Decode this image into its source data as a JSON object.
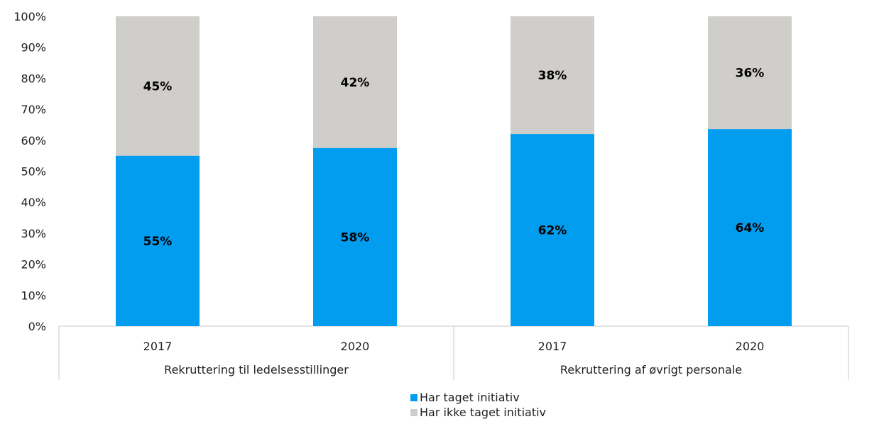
{
  "chart_data": {
    "type": "bar",
    "stacked": true,
    "y_axis": {
      "min": 0,
      "max": 100,
      "tick_labels": [
        "0%",
        "10%",
        "20%",
        "30%",
        "40%",
        "50%",
        "60%",
        "70%",
        "80%",
        "90%",
        "100%"
      ]
    },
    "groups": [
      "Rekruttering til ledelsesstillinger",
      "Rekruttering af øvrigt personale"
    ],
    "categories": [
      "2017",
      "2020",
      "2017",
      "2020"
    ],
    "series": [
      {
        "name": "Har taget initiativ",
        "color": "#039DF0",
        "values": [
          55,
          57.5,
          62,
          63.6
        ],
        "labels": [
          "55%",
          "58%",
          "62%",
          "64%"
        ]
      },
      {
        "name": "Har ikke taget initiativ",
        "color": "#D0CECA",
        "values": [
          45,
          42.5,
          38,
          36.4
        ],
        "labels": [
          "45%",
          "42%",
          "38%",
          "36%"
        ]
      }
    ],
    "legend_position": "bottom",
    "grid": false
  }
}
